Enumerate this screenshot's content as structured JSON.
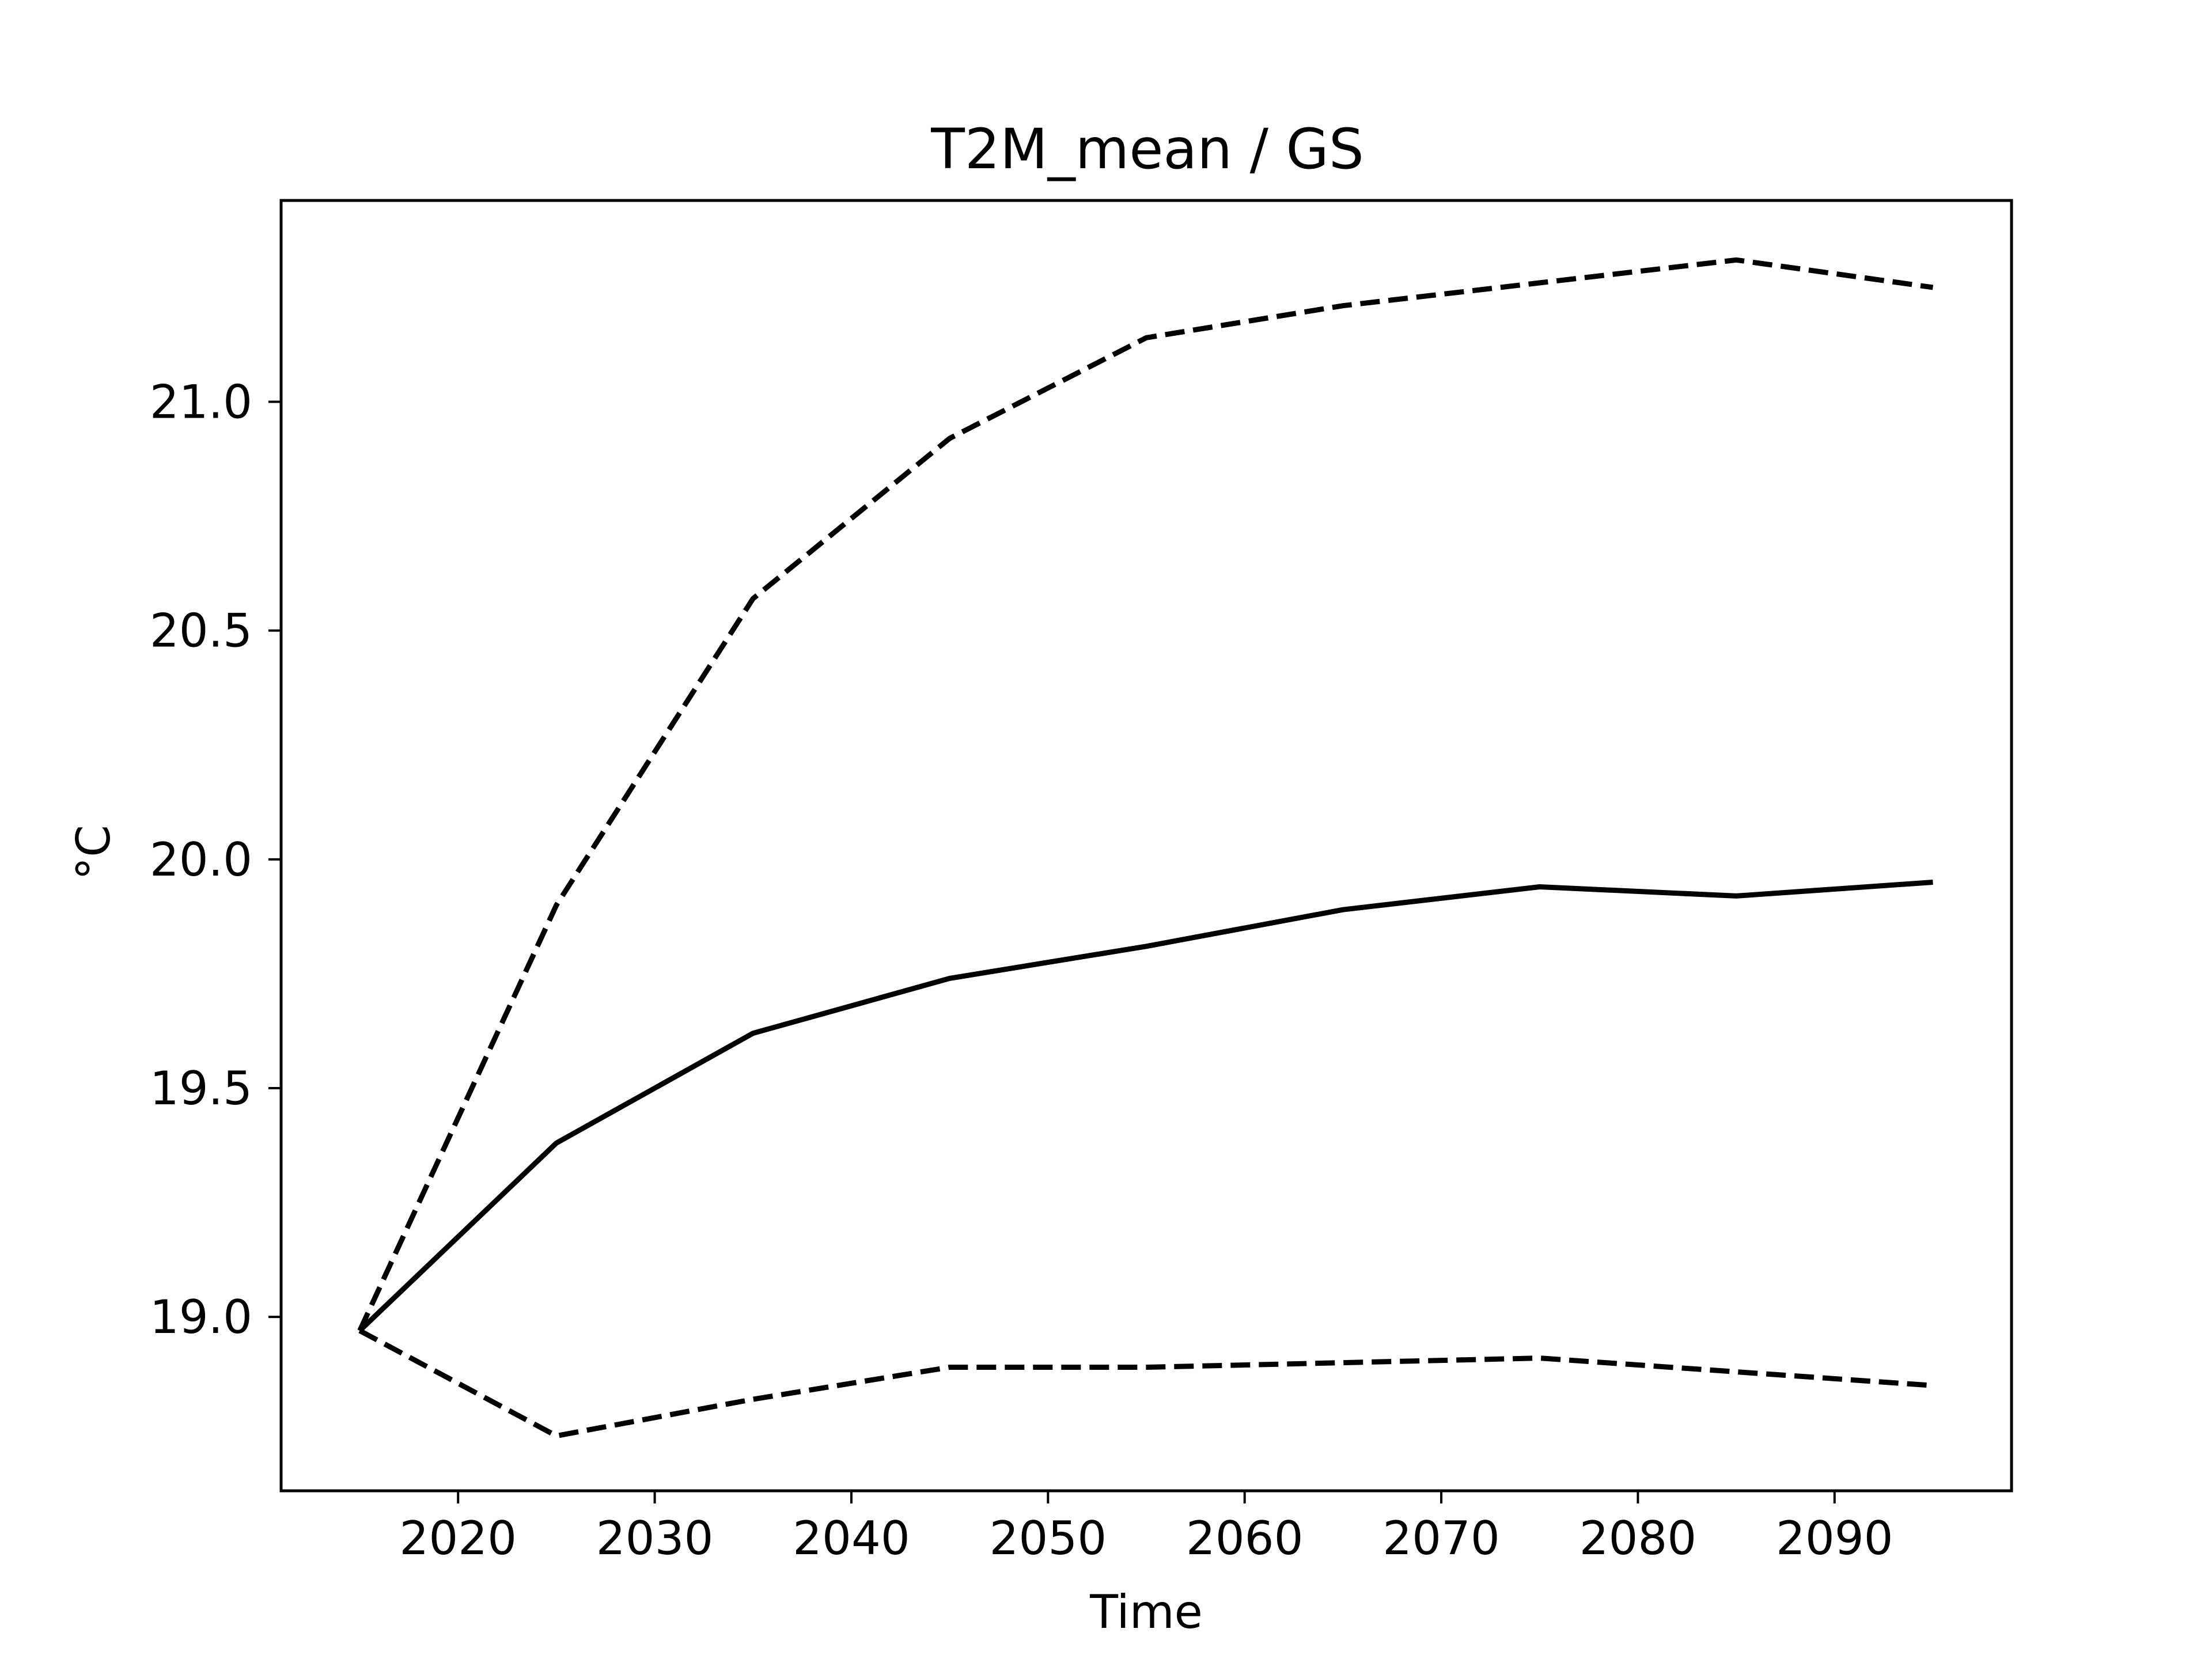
{
  "chart_data": {
    "type": "line",
    "title": "T2M_mean / GS",
    "xlabel": "Time",
    "ylabel": "°C",
    "xlim": [
      2011,
      2099
    ],
    "ylim": [
      18.62,
      21.44
    ],
    "xticks": [
      2020,
      2030,
      2040,
      2050,
      2060,
      2070,
      2080,
      2090
    ],
    "yticks": [
      19.0,
      19.5,
      20.0,
      20.5,
      21.0
    ],
    "grid": false,
    "legend": "none",
    "colors": {
      "line": "#000000",
      "axes": "#000000",
      "background": "#ffffff"
    },
    "x": [
      2015,
      2025,
      2035,
      2045,
      2055,
      2065,
      2075,
      2085,
      2095
    ],
    "series": [
      {
        "style": "solid",
        "values": [
          18.97,
          19.38,
          19.62,
          19.74,
          19.81,
          19.89,
          19.94,
          19.92,
          19.95
        ]
      },
      {
        "style": "dashed",
        "values": [
          18.97,
          19.9,
          20.57,
          20.92,
          21.14,
          21.21,
          21.26,
          21.31,
          21.25
        ]
      },
      {
        "style": "dashed",
        "values": [
          18.97,
          18.74,
          18.82,
          18.89,
          18.89,
          18.9,
          18.91,
          18.88,
          18.85
        ]
      }
    ]
  }
}
